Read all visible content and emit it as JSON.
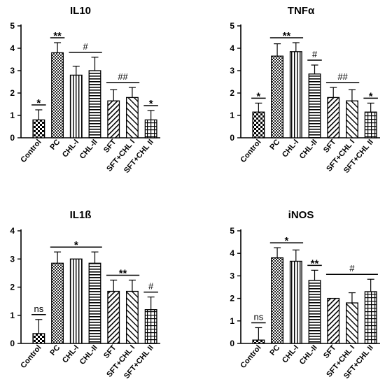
{
  "chart_data": [
    {
      "type": "bar",
      "title": "IL10",
      "categories": [
        "Control",
        "PC",
        "CHL-I",
        "CHL-II",
        "SFT",
        "SFT+CHL I",
        "SFT+CHL II"
      ],
      "values": [
        0.8,
        3.8,
        2.8,
        3.0,
        1.65,
        1.8,
        0.8
      ],
      "errors": [
        0.45,
        0.45,
        0.4,
        0.6,
        0.5,
        0.45,
        0.42
      ],
      "ylim": [
        0,
        5
      ],
      "yticks": [
        "0",
        "1",
        "2",
        "3",
        "4",
        "5"
      ],
      "annotations": [
        {
          "label": "*",
          "bars": [
            0
          ]
        },
        {
          "label": "**",
          "bars": [
            1
          ]
        },
        {
          "label": "#",
          "bars": [
            2,
            3
          ]
        },
        {
          "label": "##",
          "bars": [
            4,
            5
          ]
        },
        {
          "label": "*",
          "bars": [
            6
          ]
        }
      ]
    },
    {
      "type": "bar",
      "title": "TNFα",
      "categories": [
        "Control",
        "PC",
        "CHL-I",
        "CHL-II",
        "SFT",
        "SFT+CHL I",
        "SFT+CHL II"
      ],
      "values": [
        1.15,
        3.65,
        3.85,
        2.85,
        1.8,
        1.65,
        1.15
      ],
      "errors": [
        0.4,
        0.55,
        0.4,
        0.4,
        0.45,
        0.5,
        0.4
      ],
      "ylim": [
        0,
        5
      ],
      "yticks": [
        "0",
        "1",
        "2",
        "3",
        "4",
        "5"
      ],
      "annotations": [
        {
          "label": "*",
          "bars": [
            0
          ]
        },
        {
          "label": "**",
          "bars": [
            1,
            2
          ]
        },
        {
          "label": "#",
          "bars": [
            3
          ]
        },
        {
          "label": "##",
          "bars": [
            4,
            5
          ]
        },
        {
          "label": "*",
          "bars": [
            6
          ]
        }
      ]
    },
    {
      "type": "bar",
      "title": "IL1ß",
      "categories": [
        "Control",
        "PC",
        "CHL-I",
        "CHL-II",
        "SFT",
        "SFT+CHL I",
        "SFT+CHL II"
      ],
      "values": [
        0.35,
        2.85,
        3.0,
        2.85,
        1.85,
        1.85,
        1.2
      ],
      "errors": [
        0.5,
        0.4,
        0.0,
        0.4,
        0.4,
        0.4,
        0.45
      ],
      "ylim": [
        0,
        4
      ],
      "yticks": [
        "0",
        "1",
        "2",
        "3",
        "4"
      ],
      "annotations": [
        {
          "label": "ns",
          "bars": [
            0
          ]
        },
        {
          "label": "*",
          "bars": [
            1,
            2,
            3
          ]
        },
        {
          "label": "**",
          "bars": [
            4,
            5
          ]
        },
        {
          "label": "#",
          "bars": [
            6
          ]
        }
      ]
    },
    {
      "type": "bar",
      "title": "iNOS",
      "categories": [
        "Control",
        "PC",
        "CHL-I",
        "CHL-II",
        "SFT",
        "SFT+CHL I",
        "SFT+CHL II"
      ],
      "values": [
        0.15,
        3.8,
        3.65,
        2.8,
        2.0,
        1.8,
        2.3
      ],
      "errors": [
        0.55,
        0.45,
        0.5,
        0.45,
        0.0,
        0.45,
        0.55
      ],
      "ylim": [
        0,
        5
      ],
      "yticks": [
        "0",
        "1",
        "2",
        "3",
        "4",
        "5"
      ],
      "annotations": [
        {
          "label": "ns",
          "bars": [
            0
          ]
        },
        {
          "label": "*",
          "bars": [
            1,
            2
          ]
        },
        {
          "label": "**",
          "bars": [
            3
          ]
        },
        {
          "label": "#",
          "bars": [
            4,
            5,
            6
          ]
        }
      ]
    }
  ]
}
